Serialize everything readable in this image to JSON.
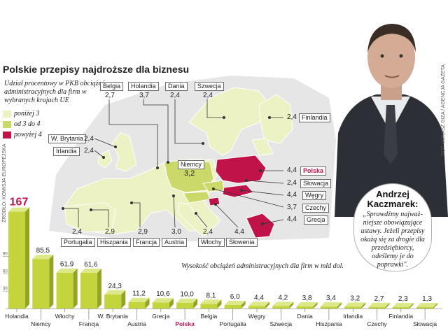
{
  "header": {
    "title": "Polskie przepisy najdroższe dla biznesu",
    "subtitle": "Udział procentowy w PKB obciążeń administracyjnych dla firm w wybranych krajach UE"
  },
  "legend": [
    {
      "label": "poniżej 3",
      "color": "#ecf2c3"
    },
    {
      "label": "od 3 do 4",
      "color": "#cbd96a"
    },
    {
      "label": "powyżej 4",
      "color": "#c0134a"
    }
  ],
  "map": {
    "country_values": [
      {
        "country": "Belgia",
        "value": "2,7"
      },
      {
        "country": "Holandia",
        "value": "3,7"
      },
      {
        "country": "Dania",
        "value": "2,4"
      },
      {
        "country": "Szwecja",
        "value": "2,4"
      },
      {
        "country": "Finlandia",
        "value": "2,4"
      },
      {
        "country": "W. Brytania",
        "value": "2,4"
      },
      {
        "country": "Irlandia",
        "value": "2,4"
      },
      {
        "country": "Niemcy",
        "value": "3,2"
      },
      {
        "country": "Polska",
        "value": "4,4"
      },
      {
        "country": "Słowacja",
        "value": "2,4"
      },
      {
        "country": "Węgry",
        "value": "4,4"
      },
      {
        "country": "Czechy",
        "value": "3,7"
      },
      {
        "country": "Grecja",
        "value": "4,4"
      },
      {
        "country": "Portugalia",
        "value": "2,4"
      },
      {
        "country": "Hiszpania",
        "value": "2,9"
      },
      {
        "country": "Francja",
        "value": "2,9"
      },
      {
        "country": "Austria",
        "value": "3,0"
      },
      {
        "country": "Włochy",
        "value": "2,4"
      },
      {
        "country": "Słowenia",
        "value": "4,4"
      }
    ]
  },
  "quote": {
    "name": "Andrzej Kaczmarek:",
    "text": "„Sprawdźmy najważ-niejsze obowiązujące ustawy. Jeżeli przepisy okażą się za drogie dla przedsiębiorcy, odeślemy je do poprawki\"."
  },
  "credits": {
    "source": "ŹRÓDŁO: KOMISJA EUROPEJSKA",
    "photo": "FOT. ŁUKASZ GIZA / AGENCJA GAZETA"
  },
  "chart_data": {
    "type": "bar",
    "title": "",
    "caption": "Wysokość obciążeń administracyjnych dla firm w mld dol.",
    "categories": [
      "Holandia",
      "Niemcy",
      "Włochy",
      "Francja",
      "W. Brytania",
      "Austria",
      "Grecja",
      "Polska",
      "Belgia",
      "Portugalia",
      "Węgry",
      "Szwecja",
      "Dania",
      "Hiszpania",
      "Irlandia",
      "Czechy",
      "Finlandia",
      "Słowacja"
    ],
    "value_labels": [
      "167",
      "85,5",
      "61,9",
      "61,6",
      "24,3",
      "11,2",
      "10,6",
      "10,0",
      "8,1",
      "6,0",
      "4,4",
      "4,2",
      "3,8",
      "3,4",
      "3,2",
      "2,7",
      "2,3",
      "1,3"
    ],
    "values": [
      167,
      85.5,
      61.9,
      61.6,
      24.3,
      11.2,
      10.6,
      10.0,
      8.1,
      6.0,
      4.4,
      4.2,
      3.8,
      3.4,
      3.2,
      2.7,
      2.3,
      1.3
    ],
    "highlight": "Polska",
    "y_ticks": [
      "90",
      "60",
      "30"
    ],
    "ylim": [
      0,
      175
    ],
    "colors": {
      "bar": "#c3d43c",
      "bar_top": "#dde888",
      "bar_side": "#93a323",
      "highlight_text": "#c0134a"
    }
  }
}
